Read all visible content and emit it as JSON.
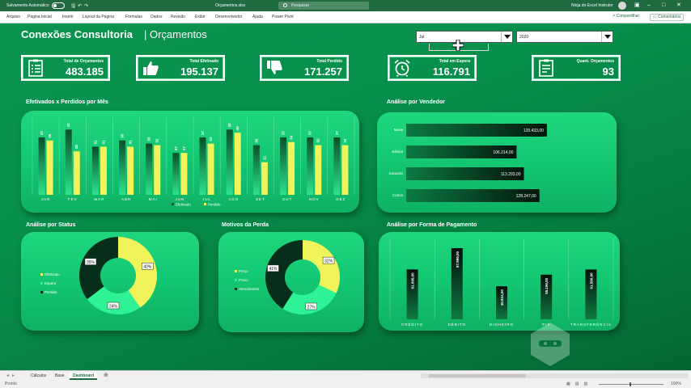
{
  "titlebar": {
    "autosave_label": "Salvamento Automático",
    "document_name": "Orçamentos.xlsx",
    "search_placeholder": "Pesquisar",
    "user_name": "Ninja do Excel Instrutor"
  },
  "menu": {
    "items": [
      "Arquivo",
      "Página Inicial",
      "Inserir",
      "Layout da Página",
      "Fórmulas",
      "Dados",
      "Revisão",
      "Exibir",
      "Desenvolvedor",
      "Ajuda",
      "Power Pivot"
    ],
    "share": "Compartilhar",
    "comments": "Comentários"
  },
  "dashboard": {
    "title": "Conexões Consultoria",
    "subtitle": "| Orçamentos",
    "filters": {
      "month": "Jul",
      "year": "2020"
    },
    "kpis": [
      {
        "label": "Total de Orçamentos",
        "value": "483.185",
        "icon": "clipboard-list-icon"
      },
      {
        "label": "Total Efetivado",
        "value": "195.137",
        "icon": "thumbs-up-icon"
      },
      {
        "label": "Total Perdido",
        "value": "171.257",
        "icon": "thumbs-down-icon"
      },
      {
        "label": "Total em Espera",
        "value": "116.791",
        "icon": "alarm-clock-icon"
      },
      {
        "label": "Quant. Orçamentos",
        "value": "93",
        "icon": "clipboard-check-icon"
      }
    ],
    "sections": {
      "monthly": "Efetivados x Perdidos por Mês",
      "seller": "Análise por Vendedor",
      "status": "Análise por Status",
      "loss": "Motivos da Perda",
      "payment": "Análise por Forma de Pagamento"
    }
  },
  "colors": {
    "efetivado": "#0b6b3a",
    "perdido": "#f0f35a",
    "espera": "#2ff296",
    "dark": "#062e1a",
    "panel": "#17cc78"
  },
  "chart_data": [
    {
      "id": "monthly",
      "type": "bar",
      "categories": [
        "JAN",
        "FEV",
        "MAR",
        "ABR",
        "MAI",
        "JUN",
        "JUL",
        "AGO",
        "SET",
        "OUT",
        "NOV",
        "DEZ"
      ],
      "series": [
        {
          "name": "Efetivado",
          "values": [
            37,
            42,
            31,
            35,
            33,
            27,
            37,
            42,
            32,
            37,
            37,
            37
          ]
        },
        {
          "name": "Perdido",
          "values": [
            35,
            28,
            31,
            31,
            32,
            27,
            33,
            40,
            21,
            34,
            32,
            32
          ]
        }
      ],
      "legend": "bottom",
      "ylim": [
        0,
        50
      ]
    },
    {
      "id": "seller",
      "type": "bar",
      "orientation": "horizontal",
      "categories": [
        "Maria",
        "Juliana",
        "Eduardo",
        "Carlos"
      ],
      "values": [
        135433,
        106214,
        113293,
        128247
      ],
      "labels": [
        "135.433,00",
        "106.214,00",
        "113.293,00",
        "128.247,00"
      ],
      "xlim": [
        0,
        190000
      ]
    },
    {
      "id": "status",
      "type": "pie",
      "donut": true,
      "categories": [
        "Efetivado",
        "Espera",
        "Perdido"
      ],
      "values": [
        40,
        24,
        35
      ],
      "labels": [
        "40%",
        "24%",
        "35%"
      ],
      "legend": "left"
    },
    {
      "id": "loss",
      "type": "pie",
      "donut": true,
      "categories": [
        "Preço",
        "Prazo",
        "Atendimento"
      ],
      "values": [
        32,
        27,
        41
      ],
      "labels": [
        "32%",
        "27%",
        "41%"
      ],
      "legend": "left"
    },
    {
      "id": "payment",
      "type": "bar",
      "categories": [
        "CRÉDITO",
        "DÉBITO",
        "DINHEIRO",
        "PIX",
        "TRANSFERÊNCIA"
      ],
      "values": [
        61695,
        87999,
        40834,
        55196,
        61590
      ],
      "labels": [
        "61.695,00",
        "87.999,00",
        "40.834,00",
        "55.196,00",
        "61.590,00"
      ],
      "ylim": [
        0,
        100000
      ]
    }
  ],
  "sheets": {
    "tabs": [
      "Cálculos",
      "Base",
      "Dashboard"
    ],
    "active": "Dashboard"
  },
  "status": {
    "ready": "Pronto",
    "zoom": "100%"
  }
}
